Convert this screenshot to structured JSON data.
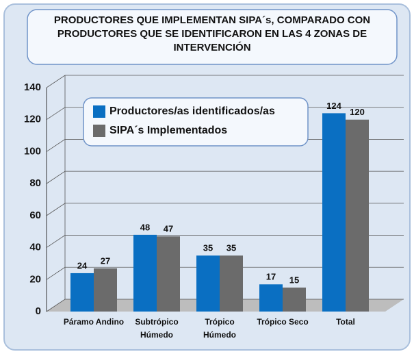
{
  "chart_data": {
    "type": "bar",
    "title": "PRODUCTORES QUE IMPLEMENTAN SIPA´s, COMPARADO CON PRODUCTORES QUE SE IDENTIFICARON EN LAS 4 ZONAS DE INTERVENCIÓN",
    "categories": [
      "Páramo Andino",
      "Subtrópico Húmedo",
      "Trópico Húmedo",
      "Trópico Seco",
      "Total"
    ],
    "series": [
      {
        "name": "Productores/as identificados/as",
        "color": "#0a6fc2",
        "values": [
          24,
          48,
          35,
          17,
          124
        ]
      },
      {
        "name": "SIPA´s Implementados",
        "color": "#6b6b6b",
        "values": [
          27,
          47,
          35,
          15,
          120
        ]
      }
    ],
    "ylim": [
      0,
      140
    ],
    "yticks": [
      0,
      20,
      40,
      60,
      80,
      100,
      120,
      140
    ],
    "grid": true
  }
}
